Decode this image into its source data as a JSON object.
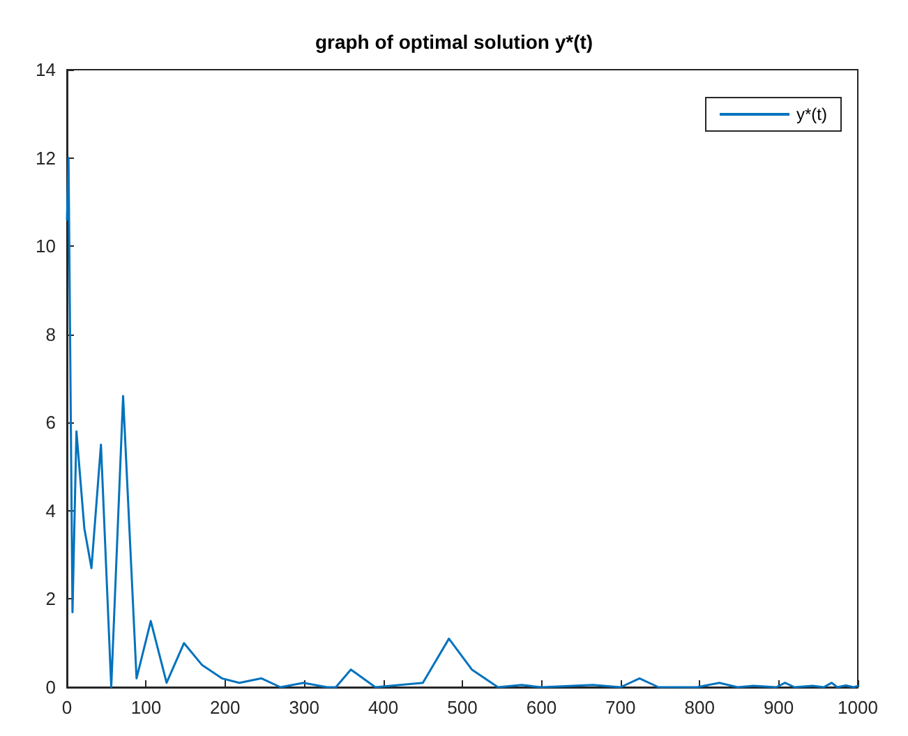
{
  "chart_data": {
    "type": "line",
    "title": "graph of optimal solution y*(t)",
    "x": [
      0,
      2,
      7,
      12,
      22,
      31,
      43,
      56,
      71,
      88,
      106,
      126,
      148,
      171,
      196,
      218,
      246,
      270,
      299,
      329,
      340,
      359,
      390,
      450,
      483,
      512,
      545,
      575,
      600,
      665,
      700,
      724,
      748,
      797,
      825,
      848,
      868,
      897,
      908,
      920,
      943,
      957,
      967,
      974,
      985,
      995,
      1000
    ],
    "series": [
      {
        "name": "y*(t)",
        "color": "#0072bd",
        "values": [
          10.6,
          12,
          1.7,
          5.8,
          3.6,
          2.7,
          5.5,
          0,
          6.6,
          0.2,
          1.5,
          0.1,
          1.0,
          0.5,
          0.2,
          0.1,
          0.2,
          0,
          0.1,
          0,
          0,
          0.4,
          0,
          0.1,
          1.1,
          0.4,
          0,
          0.05,
          0,
          0.05,
          0,
          0.2,
          0,
          0,
          0.1,
          0,
          0.03,
          0,
          0.1,
          0,
          0.03,
          0,
          0.1,
          0,
          0.04,
          0,
          0.03
        ]
      }
    ],
    "xlim": [
      0,
      1000
    ],
    "xticks": [
      0,
      100,
      200,
      300,
      400,
      500,
      600,
      700,
      800,
      900,
      1000
    ],
    "ylim": [
      0,
      14
    ],
    "yticks": [
      0,
      2,
      4,
      6,
      8,
      10,
      12,
      14
    ],
    "grid": false,
    "legend": "top right",
    "marker": "none",
    "line_style": "solid"
  }
}
